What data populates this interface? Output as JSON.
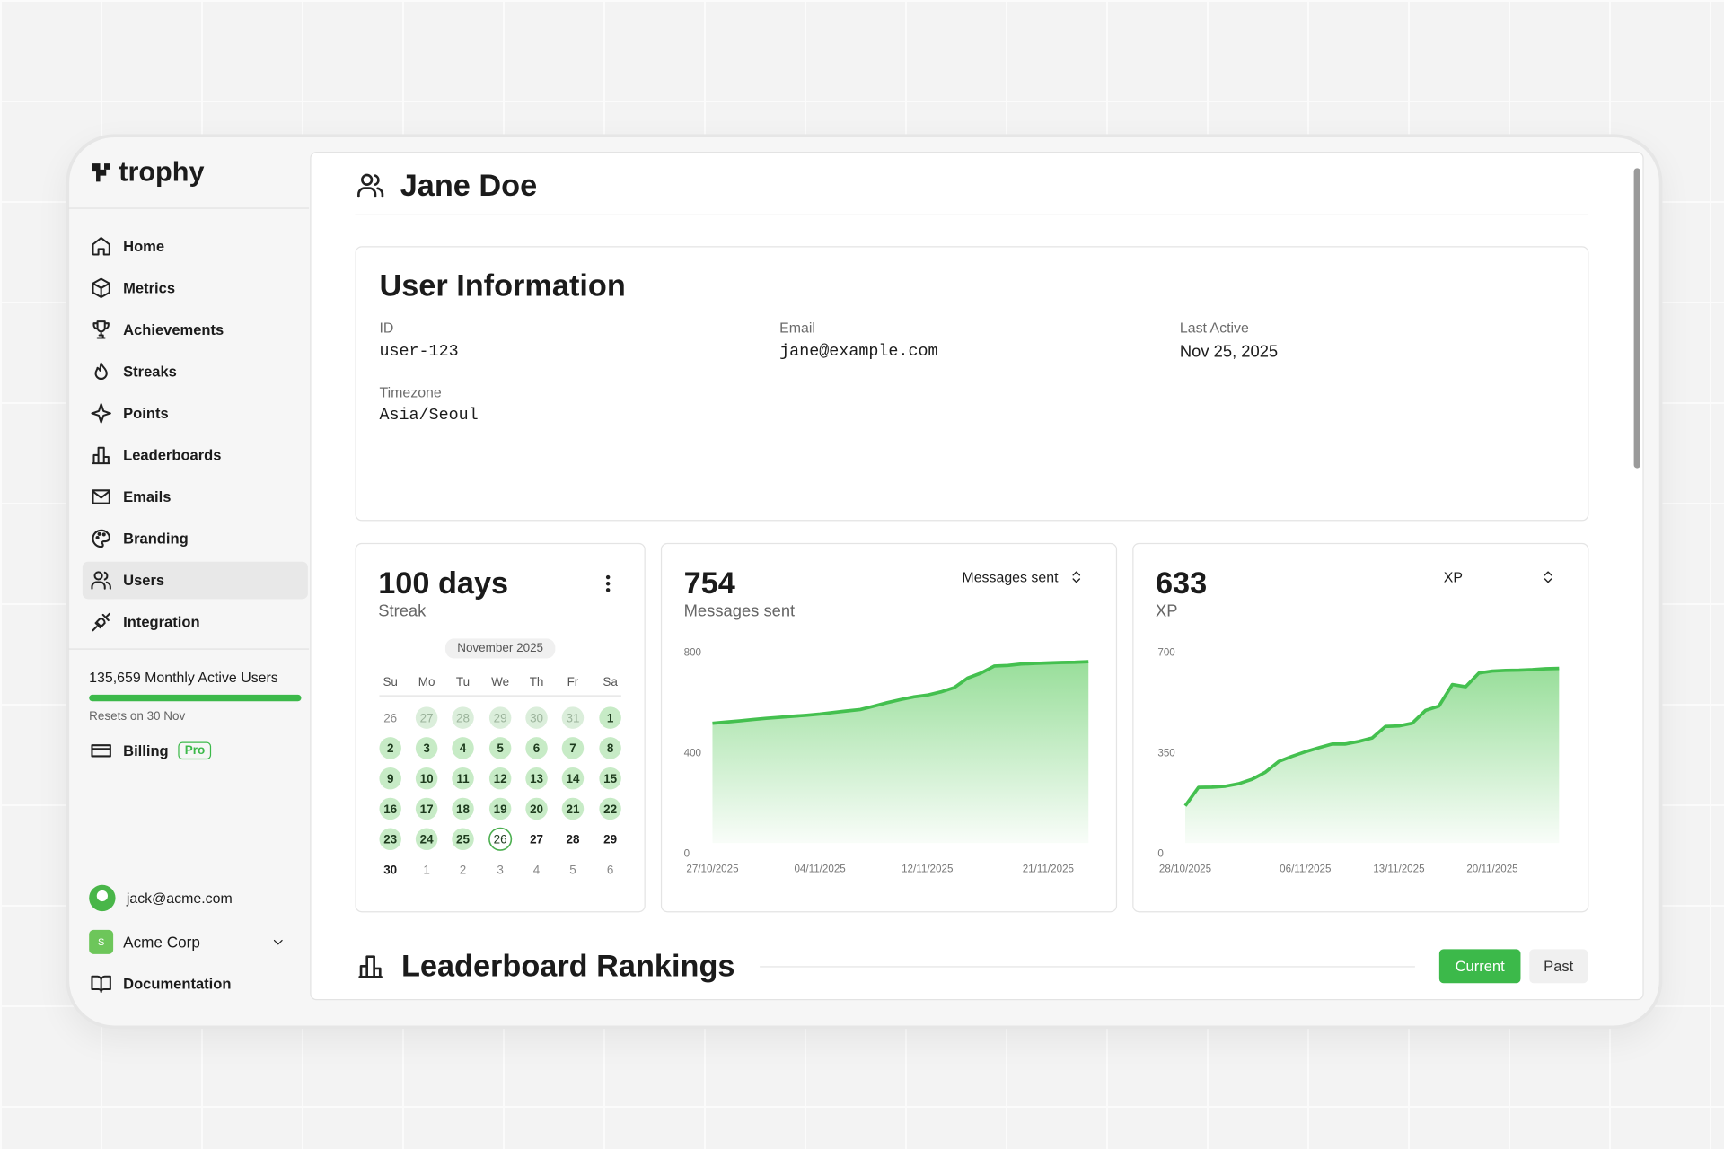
{
  "brand": "trophy",
  "nav": [
    "Home",
    "Metrics",
    "Achievements",
    "Streaks",
    "Points",
    "Leaderboards",
    "Emails",
    "Branding",
    "Users",
    "Integration"
  ],
  "usage": {
    "label": "135,659 Monthly Active Users",
    "reset": "Resets on 30 Nov"
  },
  "billing": {
    "label": "Billing",
    "badge": "Pro"
  },
  "account": {
    "email": "jack@acme.com",
    "org_badge": "S",
    "org": "Acme Corp"
  },
  "docs": "Documentation",
  "header": {
    "title": "Jane Doe"
  },
  "user_info": {
    "title": "User Information",
    "fields": [
      {
        "label": "ID",
        "value": "user-123"
      },
      {
        "label": "Email",
        "value": "jane@example.com"
      },
      {
        "label": "Last Active",
        "value": "Nov 25, 2025"
      },
      {
        "label": "Timezone",
        "value": "Asia/Seoul"
      }
    ]
  },
  "streak": {
    "value": "100 days",
    "label": "Streak",
    "month": "November 2025",
    "weekdays": [
      "Su",
      "Mo",
      "Tu",
      "We",
      "Th",
      "Fr",
      "Sa"
    ],
    "weeks": [
      [
        {
          "day": 26,
          "state": "outside"
        },
        {
          "day": 27,
          "state": "outside-done"
        },
        {
          "day": 28,
          "state": "outside-done"
        },
        {
          "day": 29,
          "state": "outside-done"
        },
        {
          "day": 30,
          "state": "outside-done"
        },
        {
          "day": 31,
          "state": "outside-done"
        },
        {
          "day": 1,
          "state": "done"
        }
      ],
      [
        {
          "day": 2,
          "state": "done"
        },
        {
          "day": 3,
          "state": "done"
        },
        {
          "day": 4,
          "state": "done"
        },
        {
          "day": 5,
          "state": "done"
        },
        {
          "day": 6,
          "state": "done"
        },
        {
          "day": 7,
          "state": "done"
        },
        {
          "day": 8,
          "state": "done"
        }
      ],
      [
        {
          "day": 9,
          "state": "done"
        },
        {
          "day": 10,
          "state": "done"
        },
        {
          "day": 11,
          "state": "done"
        },
        {
          "day": 12,
          "state": "done"
        },
        {
          "day": 13,
          "state": "done"
        },
        {
          "day": 14,
          "state": "done"
        },
        {
          "day": 15,
          "state": "done"
        }
      ],
      [
        {
          "day": 16,
          "state": "done"
        },
        {
          "day": 17,
          "state": "done"
        },
        {
          "day": 18,
          "state": "done"
        },
        {
          "day": 19,
          "state": "done"
        },
        {
          "day": 20,
          "state": "done"
        },
        {
          "day": 21,
          "state": "done"
        },
        {
          "day": 22,
          "state": "done"
        }
      ],
      [
        {
          "day": 23,
          "state": "done"
        },
        {
          "day": 24,
          "state": "done"
        },
        {
          "day": 25,
          "state": "done"
        },
        {
          "day": 26,
          "state": "today"
        },
        {
          "day": 27,
          "state": "upcoming"
        },
        {
          "day": 28,
          "state": "upcoming"
        },
        {
          "day": 29,
          "state": "upcoming"
        }
      ],
      [
        {
          "day": 30,
          "state": "upcoming"
        },
        {
          "day": 1,
          "state": "outside"
        },
        {
          "day": 2,
          "state": "outside"
        },
        {
          "day": 3,
          "state": "outside"
        },
        {
          "day": 4,
          "state": "outside"
        },
        {
          "day": 5,
          "state": "outside"
        },
        {
          "day": 6,
          "state": "outside"
        }
      ]
    ]
  },
  "charts": [
    {
      "type": "area",
      "value": "754",
      "label": "Messages sent",
      "selector": "Messages sent",
      "color": "#44c04f",
      "categories": [
        "27/10/2025",
        null,
        null,
        null,
        null,
        null,
        null,
        null,
        "04/11/2025",
        null,
        null,
        null,
        null,
        null,
        null,
        null,
        "12/11/2025",
        null,
        null,
        null,
        null,
        null,
        null,
        null,
        null,
        "21/11/2025",
        null,
        null,
        null
      ],
      "values": [
        520,
        525,
        530,
        535,
        540,
        544,
        548,
        552,
        557,
        563,
        569,
        575,
        588,
        602,
        614,
        625,
        632,
        645,
        662,
        700,
        720,
        748,
        750,
        756,
        758,
        760,
        762,
        763,
        765
      ],
      "ylim": [
        0,
        800
      ],
      "yticks": [
        0,
        400,
        800
      ]
    },
    {
      "type": "area",
      "value": "633",
      "label": "XP",
      "selector": "XP",
      "color": "#44c04f",
      "categories": [
        "28/10/2025",
        null,
        null,
        null,
        null,
        null,
        null,
        null,
        null,
        "06/11/2025",
        null,
        null,
        null,
        null,
        null,
        null,
        "13/11/2025",
        null,
        null,
        null,
        null,
        null,
        null,
        "20/11/2025",
        null,
        null,
        null,
        null,
        null
      ],
      "values": [
        168,
        232,
        233,
        236,
        245,
        260,
        285,
        322,
        340,
        356,
        370,
        383,
        383,
        392,
        404,
        444,
        446,
        455,
        500,
        515,
        590,
        582,
        630,
        637,
        639,
        640,
        642,
        645,
        646
      ],
      "ylim": [
        0,
        700
      ],
      "yticks": [
        0,
        350,
        700
      ]
    }
  ],
  "leaderboard": {
    "title": "Leaderboard Rankings",
    "tabs": [
      "Current",
      "Past"
    ]
  }
}
